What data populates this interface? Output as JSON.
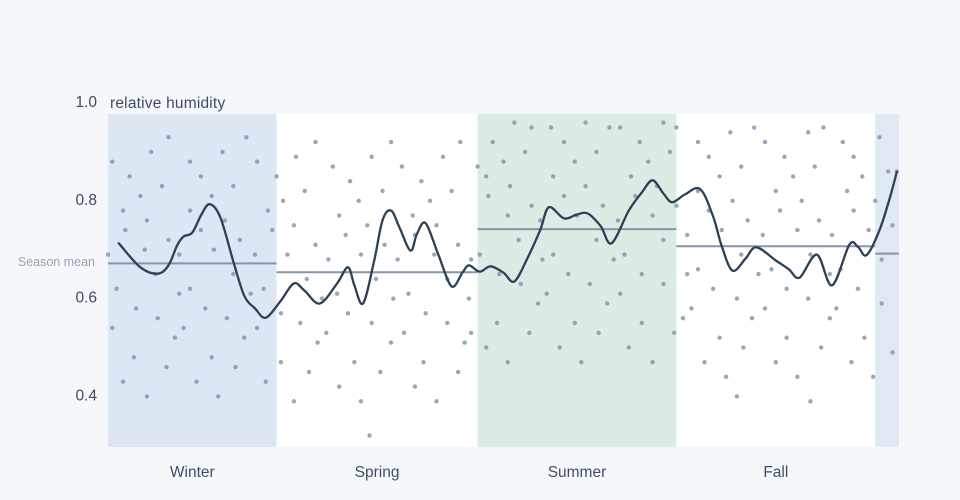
{
  "page": {
    "background": "#f5f8fb"
  },
  "chart_data": {
    "type": "scatter",
    "title": "relative humidity",
    "annotation": "Season mean",
    "xlabel": "",
    "ylabel": "relative humidity",
    "x_domain_days": [
      0,
      366
    ],
    "y_ticks": [
      {
        "label": "1.0",
        "value": 1.0
      },
      {
        "label": "0.8",
        "value": 0.8
      },
      {
        "label": "0.6",
        "value": 0.6
      },
      {
        "label": "0.4",
        "value": 0.4
      }
    ],
    "grid": false,
    "legend_position": "none",
    "seasons": [
      {
        "label": "Winter",
        "start_day": 0,
        "end_day": 78,
        "mean": 0.672,
        "band": "#dde7f3"
      },
      {
        "label": "Spring",
        "start_day": 78,
        "end_day": 171,
        "mean": 0.654,
        "band": null
      },
      {
        "label": "Summer",
        "start_day": 171,
        "end_day": 263,
        "mean": 0.742,
        "band": "#dcebe4"
      },
      {
        "label": "Fall",
        "start_day": 263,
        "end_day": 355,
        "mean": 0.707,
        "band": null
      },
      {
        "label": "",
        "start_day": 355,
        "end_day": 366,
        "mean": 0.692,
        "band": "#e0e8f4"
      }
    ],
    "trend": [
      [
        5,
        0.713
      ],
      [
        15,
        0.664
      ],
      [
        23,
        0.651
      ],
      [
        28,
        0.668
      ],
      [
        32,
        0.709
      ],
      [
        35,
        0.727
      ],
      [
        39,
        0.735
      ],
      [
        43,
        0.77
      ],
      [
        47,
        0.793
      ],
      [
        52,
        0.766
      ],
      [
        58,
        0.676
      ],
      [
        63,
        0.606
      ],
      [
        68,
        0.58
      ],
      [
        73,
        0.561
      ],
      [
        80,
        0.596
      ],
      [
        86,
        0.631
      ],
      [
        91,
        0.616
      ],
      [
        98,
        0.59
      ],
      [
        106,
        0.631
      ],
      [
        111,
        0.664
      ],
      [
        114,
        0.627
      ],
      [
        118,
        0.59
      ],
      [
        123,
        0.674
      ],
      [
        127,
        0.76
      ],
      [
        131,
        0.78
      ],
      [
        135,
        0.744
      ],
      [
        140,
        0.698
      ],
      [
        143,
        0.733
      ],
      [
        147,
        0.754
      ],
      [
        153,
        0.688
      ],
      [
        159,
        0.625
      ],
      [
        164,
        0.653
      ],
      [
        167,
        0.668
      ],
      [
        172,
        0.655
      ],
      [
        177,
        0.666
      ],
      [
        183,
        0.653
      ],
      [
        188,
        0.635
      ],
      [
        194,
        0.682
      ],
      [
        200,
        0.74
      ],
      [
        204,
        0.787
      ],
      [
        211,
        0.764
      ],
      [
        217,
        0.772
      ],
      [
        222,
        0.774
      ],
      [
        228,
        0.748
      ],
      [
        233,
        0.713
      ],
      [
        241,
        0.78
      ],
      [
        247,
        0.817
      ],
      [
        252,
        0.842
      ],
      [
        257,
        0.815
      ],
      [
        261,
        0.797
      ],
      [
        267,
        0.813
      ],
      [
        274,
        0.824
      ],
      [
        280,
        0.768
      ],
      [
        284,
        0.707
      ],
      [
        289,
        0.657
      ],
      [
        295,
        0.682
      ],
      [
        300,
        0.705
      ],
      [
        309,
        0.678
      ],
      [
        315,
        0.66
      ],
      [
        320,
        0.643
      ],
      [
        328,
        0.69
      ],
      [
        335,
        0.627
      ],
      [
        343,
        0.71
      ],
      [
        347,
        0.706
      ],
      [
        351,
        0.689
      ],
      [
        357,
        0.74
      ],
      [
        362,
        0.81
      ],
      [
        365,
        0.859
      ]
    ],
    "points": [
      [
        0,
        0.69
      ],
      [
        2,
        0.54
      ],
      [
        2,
        0.88
      ],
      [
        4,
        0.62
      ],
      [
        7,
        0.78
      ],
      [
        7,
        0.43
      ],
      [
        8,
        0.74
      ],
      [
        10,
        0.85
      ],
      [
        13,
        0.58
      ],
      [
        12,
        0.48
      ],
      [
        15,
        0.81
      ],
      [
        17,
        0.7
      ],
      [
        18,
        0.4
      ],
      [
        18,
        0.76
      ],
      [
        20,
        0.9
      ],
      [
        23,
        0.56
      ],
      [
        22,
        0.65
      ],
      [
        25,
        0.83
      ],
      [
        27,
        0.46
      ],
      [
        28,
        0.72
      ],
      [
        28,
        0.93
      ],
      [
        31,
        0.52
      ],
      [
        33,
        0.61
      ],
      [
        33,
        0.69
      ],
      [
        35,
        0.54
      ],
      [
        38,
        0.88
      ],
      [
        38,
        0.62
      ],
      [
        38,
        0.78
      ],
      [
        41,
        0.43
      ],
      [
        43,
        0.74
      ],
      [
        43,
        0.85
      ],
      [
        45,
        0.58
      ],
      [
        48,
        0.48
      ],
      [
        48,
        0.81
      ],
      [
        49,
        0.7
      ],
      [
        51,
        0.4
      ],
      [
        54,
        0.76
      ],
      [
        53,
        0.9
      ],
      [
        55,
        0.56
      ],
      [
        58,
        0.65
      ],
      [
        58,
        0.83
      ],
      [
        59,
        0.46
      ],
      [
        61,
        0.72
      ],
      [
        64,
        0.93
      ],
      [
        63,
        0.52
      ],
      [
        66,
        0.61
      ],
      [
        68,
        0.69
      ],
      [
        69,
        0.54
      ],
      [
        69,
        0.88
      ],
      [
        72,
        0.62
      ],
      [
        74,
        0.78
      ],
      [
        73,
        0.43
      ],
      [
        76,
        0.74
      ],
      [
        78,
        0.85
      ],
      [
        80,
        0.57
      ],
      [
        80,
        0.47
      ],
      [
        81,
        0.8
      ],
      [
        83,
        0.69
      ],
      [
        86,
        0.39
      ],
      [
        86,
        0.75
      ],
      [
        87,
        0.89
      ],
      [
        89,
        0.55
      ],
      [
        92,
        0.64
      ],
      [
        91,
        0.82
      ],
      [
        93,
        0.45
      ],
      [
        96,
        0.71
      ],
      [
        96,
        0.92
      ],
      [
        97,
        0.51
      ],
      [
        99,
        0.6
      ],
      [
        102,
        0.68
      ],
      [
        101,
        0.53
      ],
      [
        104,
        0.87
      ],
      [
        106,
        0.61
      ],
      [
        107,
        0.77
      ],
      [
        107,
        0.42
      ],
      [
        110,
        0.73
      ],
      [
        112,
        0.84
      ],
      [
        111,
        0.57
      ],
      [
        114,
        0.47
      ],
      [
        116,
        0.8
      ],
      [
        117,
        0.69
      ],
      [
        117,
        0.39
      ],
      [
        120,
        0.75
      ],
      [
        122,
        0.89
      ],
      [
        122,
        0.55
      ],
      [
        124,
        0.64
      ],
      [
        127,
        0.82
      ],
      [
        126,
        0.45
      ],
      [
        128,
        0.71
      ],
      [
        131,
        0.92
      ],
      [
        131,
        0.51
      ],
      [
        132,
        0.6
      ],
      [
        134,
        0.68
      ],
      [
        137,
        0.53
      ],
      [
        136,
        0.87
      ],
      [
        139,
        0.61
      ],
      [
        141,
        0.77
      ],
      [
        142,
        0.42
      ],
      [
        142,
        0.73
      ],
      [
        145,
        0.84
      ],
      [
        147,
        0.57
      ],
      [
        146,
        0.47
      ],
      [
        149,
        0.8
      ],
      [
        151,
        0.69
      ],
      [
        152,
        0.39
      ],
      [
        152,
        0.75
      ],
      [
        155,
        0.89
      ],
      [
        157,
        0.55
      ],
      [
        157,
        0.64
      ],
      [
        159,
        0.82
      ],
      [
        162,
        0.45
      ],
      [
        162,
        0.71
      ],
      [
        163,
        0.92
      ],
      [
        165,
        0.51
      ],
      [
        167,
        0.6
      ],
      [
        168,
        0.68
      ],
      [
        168,
        0.53
      ],
      [
        171,
        0.87
      ],
      [
        121,
        0.32
      ],
      [
        172,
        0.69
      ],
      [
        175,
        0.85
      ],
      [
        175,
        0.5
      ],
      [
        176,
        0.81
      ],
      [
        178,
        0.92
      ],
      [
        181,
        0.65
      ],
      [
        180,
        0.55
      ],
      [
        183,
        0.88
      ],
      [
        185,
        0.77
      ],
      [
        185,
        0.47
      ],
      [
        186,
        0.83
      ],
      [
        188,
        0.96
      ],
      [
        191,
        0.63
      ],
      [
        190,
        0.72
      ],
      [
        193,
        0.9
      ],
      [
        195,
        0.53
      ],
      [
        196,
        0.79
      ],
      [
        196,
        0.95
      ],
      [
        199,
        0.59
      ],
      [
        201,
        0.68
      ],
      [
        200,
        0.76
      ],
      [
        203,
        0.61
      ],
      [
        205,
        0.95
      ],
      [
        206,
        0.69
      ],
      [
        206,
        0.85
      ],
      [
        209,
        0.5
      ],
      [
        211,
        0.81
      ],
      [
        211,
        0.92
      ],
      [
        213,
        0.65
      ],
      [
        216,
        0.55
      ],
      [
        216,
        0.88
      ],
      [
        217,
        0.77
      ],
      [
        219,
        0.47
      ],
      [
        221,
        0.83
      ],
      [
        221,
        0.96
      ],
      [
        223,
        0.63
      ],
      [
        226,
        0.72
      ],
      [
        226,
        0.9
      ],
      [
        227,
        0.53
      ],
      [
        229,
        0.79
      ],
      [
        232,
        0.95
      ],
      [
        231,
        0.59
      ],
      [
        234,
        0.68
      ],
      [
        236,
        0.76
      ],
      [
        237,
        0.61
      ],
      [
        237,
        0.95
      ],
      [
        239,
        0.69
      ],
      [
        242,
        0.85
      ],
      [
        241,
        0.5
      ],
      [
        244,
        0.81
      ],
      [
        246,
        0.92
      ],
      [
        247,
        0.65
      ],
      [
        247,
        0.55
      ],
      [
        250,
        0.88
      ],
      [
        252,
        0.77
      ],
      [
        252,
        0.47
      ],
      [
        254,
        0.83
      ],
      [
        257,
        0.96
      ],
      [
        257,
        0.63
      ],
      [
        257,
        0.72
      ],
      [
        260,
        0.9
      ],
      [
        262,
        0.53
      ],
      [
        263,
        0.79
      ],
      [
        263,
        0.95
      ],
      [
        266,
        0.56
      ],
      [
        268,
        0.65
      ],
      [
        268,
        0.73
      ],
      [
        270,
        0.58
      ],
      [
        273,
        0.92
      ],
      [
        273,
        0.66
      ],
      [
        273,
        0.82
      ],
      [
        276,
        0.47
      ],
      [
        278,
        0.78
      ],
      [
        278,
        0.89
      ],
      [
        280,
        0.62
      ],
      [
        283,
        0.52
      ],
      [
        283,
        0.85
      ],
      [
        284,
        0.74
      ],
      [
        286,
        0.44
      ],
      [
        289,
        0.8
      ],
      [
        288,
        0.94
      ],
      [
        291,
        0.6
      ],
      [
        293,
        0.69
      ],
      [
        293,
        0.87
      ],
      [
        294,
        0.5
      ],
      [
        296,
        0.76
      ],
      [
        299,
        0.95
      ],
      [
        298,
        0.56
      ],
      [
        301,
        0.65
      ],
      [
        303,
        0.73
      ],
      [
        304,
        0.58
      ],
      [
        304,
        0.92
      ],
      [
        307,
        0.66
      ],
      [
        309,
        0.82
      ],
      [
        309,
        0.47
      ],
      [
        311,
        0.78
      ],
      [
        313,
        0.89
      ],
      [
        314,
        0.62
      ],
      [
        314,
        0.52
      ],
      [
        317,
        0.85
      ],
      [
        319,
        0.74
      ],
      [
        319,
        0.44
      ],
      [
        321,
        0.8
      ],
      [
        324,
        0.94
      ],
      [
        324,
        0.6
      ],
      [
        325,
        0.69
      ],
      [
        327,
        0.87
      ],
      [
        330,
        0.5
      ],
      [
        329,
        0.76
      ],
      [
        331,
        0.95
      ],
      [
        334,
        0.56
      ],
      [
        334,
        0.65
      ],
      [
        335,
        0.73
      ],
      [
        337,
        0.58
      ],
      [
        340,
        0.92
      ],
      [
        339,
        0.66
      ],
      [
        342,
        0.82
      ],
      [
        344,
        0.47
      ],
      [
        345,
        0.78
      ],
      [
        345,
        0.89
      ],
      [
        347,
        0.62
      ],
      [
        350,
        0.52
      ],
      [
        349,
        0.85
      ],
      [
        352,
        0.74
      ],
      [
        354,
        0.44
      ],
      [
        355,
        0.8
      ],
      [
        291,
        0.4
      ],
      [
        325,
        0.39
      ],
      [
        357,
        0.93
      ],
      [
        358,
        0.59
      ],
      [
        358,
        0.68
      ],
      [
        361,
        0.86
      ],
      [
        363,
        0.49
      ],
      [
        363,
        0.75
      ],
      [
        365,
        0.86
      ]
    ],
    "colors": {
      "point": "#7e92ab",
      "trend_line": "#2d4156",
      "mean_line": "#8495ad",
      "tick_text": "#3d4c63",
      "season_text": "#3e4e66",
      "muted_text": "#99a2b4",
      "plot_bg": "#ffffff"
    }
  }
}
